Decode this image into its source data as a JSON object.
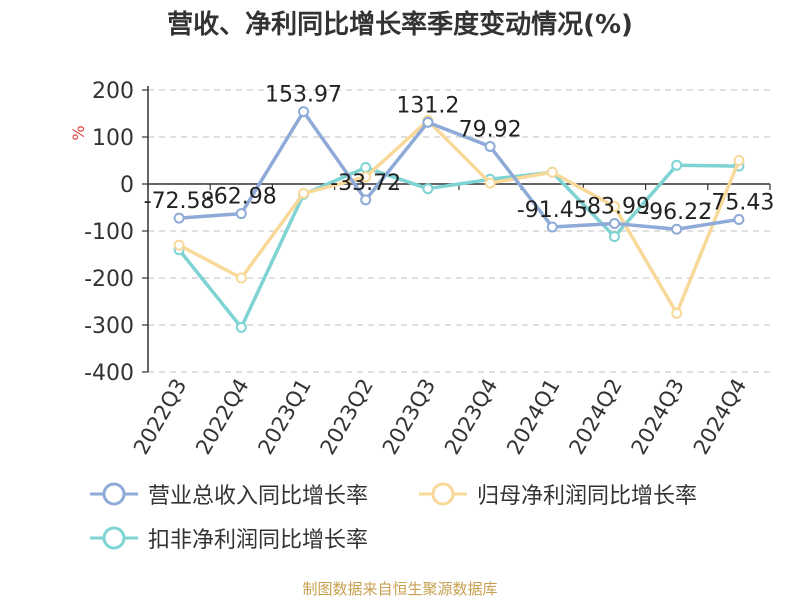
{
  "chart_data": {
    "type": "line",
    "title": "营收、净利同比增长率季度变动情况(%)",
    "ylabel": "%",
    "xlabel": "",
    "categories": [
      "2022Q3",
      "2022Q4",
      "2023Q1",
      "2023Q2",
      "2023Q3",
      "2023Q4",
      "2024Q1",
      "2024Q2",
      "2024Q3",
      "2024Q4"
    ],
    "ylim": [
      -400,
      200
    ],
    "yticks": [
      "200",
      "100",
      "0",
      "-100",
      "-200",
      "-300",
      "-400"
    ],
    "grid": true,
    "legend_position": "bottom",
    "series": [
      {
        "name": "营业总收入同比增长率",
        "color": "#8eaad8",
        "values": [
          -72.58,
          -62.98,
          153.97,
          -33.72,
          131.2,
          79.92,
          -91.45,
          -83.99,
          -96.22,
          -75.43
        ],
        "labels": [
          "-72.58",
          "-62.98",
          "153.97",
          "-33.72",
          "131.2",
          "79.92",
          "-91.45",
          "-83.99",
          "-96.22",
          "-75.43"
        ]
      },
      {
        "name": "归母净利润同比增长率",
        "color": "#f9d99a",
        "values": [
          -130,
          -200,
          -20,
          15,
          135,
          2,
          25,
          -48,
          -275,
          50
        ]
      },
      {
        "name": "扣非净利润同比增长率",
        "color": "#7fd3d3",
        "values": [
          -140,
          -305,
          -22,
          35,
          -10,
          10,
          25,
          -112,
          40,
          38
        ]
      }
    ]
  },
  "source_note": "制图数据来自恒生聚源数据库"
}
